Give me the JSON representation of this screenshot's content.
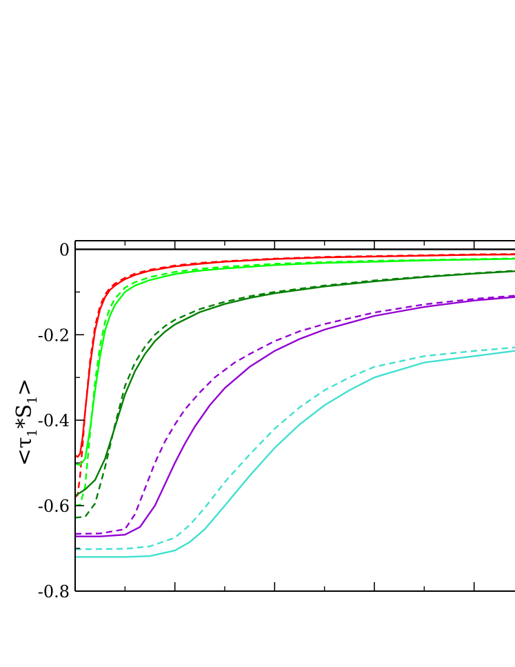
{
  "chart_data": {
    "type": "line",
    "title": "",
    "xlabel": "",
    "ylabel": "<τ1*S1>",
    "ylabel_parts": {
      "open": "<τ",
      "sub1": "1",
      "mid": "*S",
      "sub2": "1",
      "close": ">"
    },
    "xlim": [
      0,
      9
    ],
    "ylim": [
      -0.8,
      0.02
    ],
    "yticks": [
      0,
      -0.2,
      -0.4,
      -0.6,
      -0.8
    ],
    "ytick_labels": [
      "0",
      "-0.2",
      "-0.4",
      "-0.6",
      "-0.8"
    ],
    "xticks_major": [
      0,
      2,
      4,
      6,
      8
    ],
    "xticks_minor": [
      1,
      3,
      5,
      7
    ],
    "grid": false,
    "legend": "none",
    "series": [
      {
        "color": "#000000",
        "style": "solid",
        "x": [
          0,
          9
        ],
        "y": [
          0.0,
          0.0
        ]
      },
      {
        "color": "#ff0000",
        "style": "solid",
        "x": [
          0,
          0.05,
          0.1,
          0.15,
          0.2,
          0.3,
          0.4,
          0.5,
          0.6,
          0.7,
          0.8,
          0.9,
          1.0,
          1.2,
          1.5,
          2,
          2.5,
          3,
          4,
          5,
          6,
          7,
          8,
          9
        ],
        "y": [
          -0.482,
          -0.486,
          -0.478,
          -0.44,
          -0.38,
          -0.27,
          -0.19,
          -0.14,
          -0.112,
          -0.095,
          -0.085,
          -0.077,
          -0.07,
          -0.06,
          -0.05,
          -0.04,
          -0.034,
          -0.029,
          -0.023,
          -0.019,
          -0.017,
          -0.015,
          -0.013,
          -0.012
        ]
      },
      {
        "color": "#ff0000",
        "style": "dashed",
        "x": [
          0,
          0.05,
          0.1,
          0.15,
          0.2,
          0.3,
          0.4,
          0.5,
          0.6,
          0.7,
          0.8,
          0.9,
          1.0,
          1.2,
          1.5,
          2,
          2.5,
          3,
          4,
          5,
          6,
          7,
          8,
          9
        ],
        "y": [
          -0.58,
          -0.575,
          -0.53,
          -0.46,
          -0.38,
          -0.26,
          -0.18,
          -0.132,
          -0.106,
          -0.09,
          -0.08,
          -0.073,
          -0.067,
          -0.057,
          -0.048,
          -0.038,
          -0.032,
          -0.028,
          -0.022,
          -0.018,
          -0.016,
          -0.014,
          -0.012,
          -0.011
        ]
      },
      {
        "color": "#00ff00",
        "style": "solid",
        "x": [
          0,
          0.1,
          0.2,
          0.3,
          0.4,
          0.5,
          0.6,
          0.7,
          0.8,
          1.0,
          1.2,
          1.5,
          2,
          2.5,
          3,
          4,
          5,
          6,
          7,
          8,
          9
        ],
        "y": [
          -0.502,
          -0.505,
          -0.49,
          -0.42,
          -0.33,
          -0.25,
          -0.19,
          -0.155,
          -0.13,
          -0.1,
          -0.085,
          -0.072,
          -0.058,
          -0.05,
          -0.045,
          -0.037,
          -0.032,
          -0.029,
          -0.026,
          -0.024,
          -0.022
        ]
      },
      {
        "color": "#00ff00",
        "style": "dashed",
        "x": [
          0,
          0.1,
          0.2,
          0.3,
          0.4,
          0.5,
          0.6,
          0.7,
          0.8,
          1.0,
          1.2,
          1.5,
          2,
          2.5,
          3,
          4,
          5,
          6,
          7,
          8,
          9
        ],
        "y": [
          -0.6,
          -0.598,
          -0.555,
          -0.43,
          -0.31,
          -0.225,
          -0.17,
          -0.137,
          -0.115,
          -0.09,
          -0.077,
          -0.065,
          -0.053,
          -0.046,
          -0.041,
          -0.034,
          -0.03,
          -0.027,
          -0.025,
          -0.023,
          -0.021
        ]
      },
      {
        "color": "#007f00",
        "style": "solid",
        "x": [
          0,
          0.2,
          0.4,
          0.6,
          0.8,
          1.0,
          1.2,
          1.4,
          1.6,
          1.8,
          2.0,
          2.5,
          3,
          3.5,
          4,
          5,
          6,
          7,
          8,
          9
        ],
        "y": [
          -0.577,
          -0.562,
          -0.54,
          -0.49,
          -0.415,
          -0.34,
          -0.285,
          -0.245,
          -0.215,
          -0.193,
          -0.176,
          -0.147,
          -0.128,
          -0.114,
          -0.103,
          -0.087,
          -0.075,
          -0.065,
          -0.057,
          -0.05
        ]
      },
      {
        "color": "#007f00",
        "style": "dashed",
        "x": [
          0,
          0.2,
          0.4,
          0.6,
          0.8,
          1.0,
          1.2,
          1.4,
          1.6,
          1.8,
          2.0,
          2.5,
          3,
          3.5,
          4,
          5,
          6,
          7,
          8,
          9
        ],
        "y": [
          -0.628,
          -0.626,
          -0.595,
          -0.51,
          -0.41,
          -0.32,
          -0.265,
          -0.228,
          -0.2,
          -0.18,
          -0.165,
          -0.14,
          -0.123,
          -0.11,
          -0.1,
          -0.085,
          -0.073,
          -0.064,
          -0.056,
          -0.049
        ]
      },
      {
        "color": "#9400d3",
        "style": "solid",
        "x": [
          0,
          0.5,
          1.0,
          1.3,
          1.6,
          1.8,
          2.0,
          2.2,
          2.4,
          2.7,
          3.0,
          3.5,
          4,
          4.5,
          5,
          6,
          7,
          8,
          9
        ],
        "y": [
          -0.672,
          -0.672,
          -0.668,
          -0.65,
          -0.6,
          -0.55,
          -0.5,
          -0.455,
          -0.415,
          -0.365,
          -0.325,
          -0.275,
          -0.238,
          -0.21,
          -0.188,
          -0.156,
          -0.135,
          -0.12,
          -0.11
        ]
      },
      {
        "color": "#9400d3",
        "style": "dashed",
        "x": [
          0,
          0.5,
          1.0,
          1.2,
          1.4,
          1.6,
          1.8,
          2.0,
          2.2,
          2.5,
          2.8,
          3.2,
          3.5,
          4,
          4.5,
          5,
          6,
          7,
          8,
          9
        ],
        "y": [
          -0.666,
          -0.665,
          -0.655,
          -0.62,
          -0.56,
          -0.5,
          -0.45,
          -0.41,
          -0.375,
          -0.335,
          -0.3,
          -0.265,
          -0.245,
          -0.215,
          -0.192,
          -0.175,
          -0.148,
          -0.129,
          -0.116,
          -0.107
        ]
      },
      {
        "color": "#40e0d0",
        "style": "solid",
        "x": [
          0,
          1.0,
          1.5,
          2.0,
          2.3,
          2.6,
          3.0,
          3.5,
          4.0,
          4.5,
          5,
          5.5,
          6,
          7,
          8,
          9
        ],
        "y": [
          -0.72,
          -0.72,
          -0.718,
          -0.705,
          -0.685,
          -0.655,
          -0.6,
          -0.53,
          -0.465,
          -0.41,
          -0.365,
          -0.33,
          -0.3,
          -0.265,
          -0.25,
          -0.235
        ]
      },
      {
        "color": "#40e0d0",
        "style": "dashed",
        "x": [
          0,
          1.0,
          1.5,
          2.0,
          2.3,
          2.6,
          3.0,
          3.5,
          4.0,
          4.5,
          5,
          5.5,
          6,
          7,
          8,
          9
        ],
        "y": [
          -0.702,
          -0.701,
          -0.695,
          -0.675,
          -0.645,
          -0.605,
          -0.545,
          -0.48,
          -0.42,
          -0.37,
          -0.33,
          -0.3,
          -0.275,
          -0.25,
          -0.238,
          -0.228
        ]
      }
    ]
  }
}
